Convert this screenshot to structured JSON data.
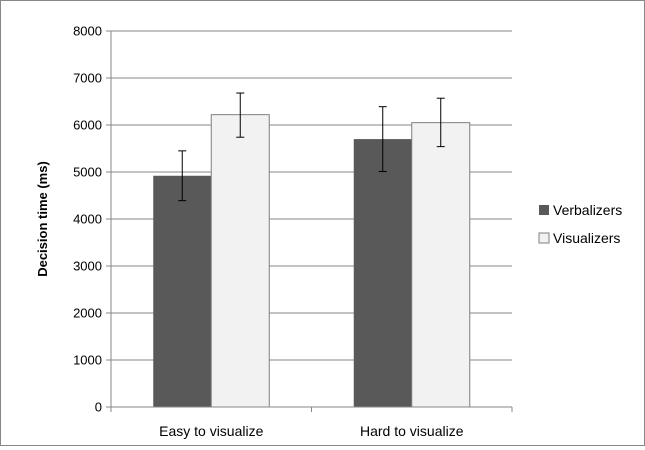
{
  "chart_data": {
    "type": "bar",
    "title": "",
    "xlabel": "",
    "ylabel": "Decision time (ms)",
    "ylim": [
      0,
      8000
    ],
    "yticks": [
      0,
      1000,
      2000,
      3000,
      4000,
      5000,
      6000,
      7000,
      8000
    ],
    "grid": true,
    "legend_position": "right",
    "categories": [
      "Easy to visualize",
      "Hard to visualize"
    ],
    "series": [
      {
        "name": "Verbalizers",
        "color": "#595959",
        "values": [
          4920,
          5700
        ],
        "error_low": [
          4390,
          5010
        ],
        "error_high": [
          5450,
          6390
        ]
      },
      {
        "name": "Visualizers",
        "color": "#f2f2f2",
        "values": [
          6220,
          6050
        ],
        "error_low": [
          5740,
          5540
        ],
        "error_high": [
          6680,
          6570
        ]
      }
    ]
  }
}
